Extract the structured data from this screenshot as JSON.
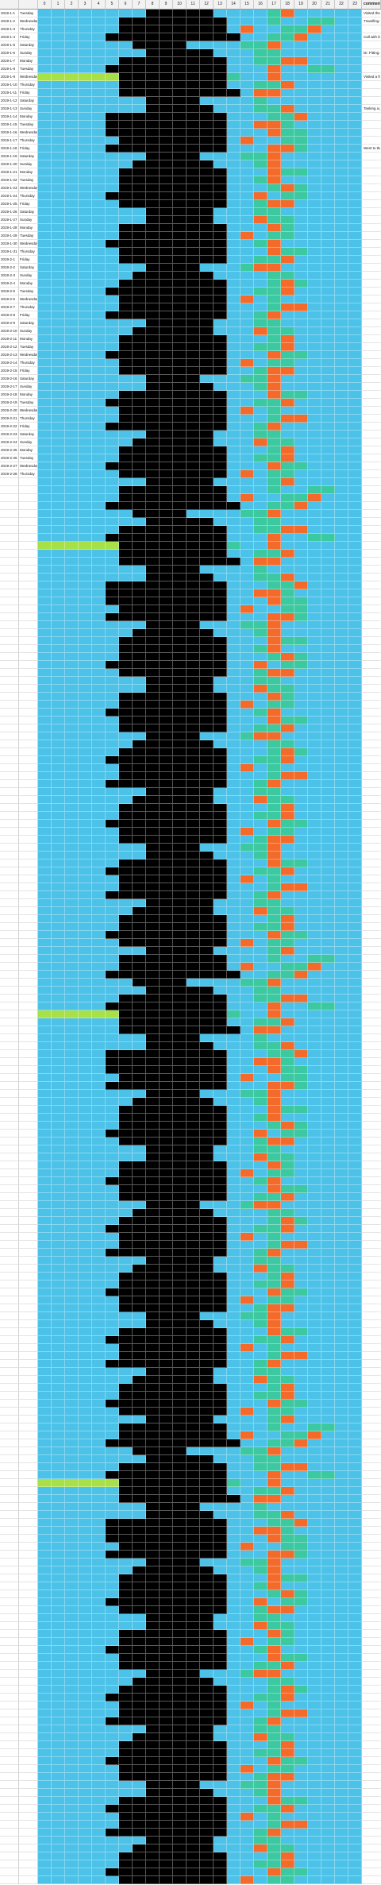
{
  "sheet": {
    "header": {
      "date_label": "",
      "day_label": "",
      "hours": [
        "0",
        "1",
        "2",
        "3",
        "4",
        "5",
        "6",
        "7",
        "8",
        "9",
        "10",
        "11",
        "12",
        "13",
        "14",
        "15",
        "16",
        "17",
        "18",
        "19",
        "20",
        "21",
        "22",
        "23"
      ],
      "comment_label": "comment"
    },
    "palette": {
      "black": "#000000",
      "cyan": "#4cc2e8",
      "lime": "#a8e048",
      "green": "#3cc8a0",
      "orange": "#f46a2a",
      "yellow": "#f0e050",
      "blue": "#5070d8",
      "gray": "#b0b0b8",
      "red": "#d83020"
    },
    "rows": [
      {
        "date": "2019-1-1",
        "day": "Tuesday",
        "cells": "CCCCCCCCBBBBBCCCCGOCCCCC",
        "comment": "Visited the parents"
      },
      {
        "date": "2019-1-2",
        "day": "Wednesday",
        "cells": "CCCCCCBBBBBBBBCCCGCCGGCC",
        "comment": "Travelling back after holidays"
      },
      {
        "date": "2019-1-3",
        "day": "Thursday",
        "cells": "CCCCCCBBBBBBBBCOCCGGOCCC",
        "comment": ""
      },
      {
        "date": "2019-1-4",
        "day": "Friday",
        "cells": "CCCCCBBBBBBBBBBCCGGOCCCC",
        "comment": "Call with family at home"
      },
      {
        "date": "2019-1-5",
        "day": "Saturday",
        "cells": "CCCCCCCBBBBCCCCGGOCCCCCC",
        "comment": ""
      },
      {
        "date": "2019-1-6",
        "day": "Sunday",
        "cells": "CCCCCCCCBBBBBCCCGGCCCCCC",
        "comment": "Dr. Fitting my composite review"
      },
      {
        "date": "2019-1-7",
        "day": "Monday",
        "cells": "CCCCCCBBBBBBBBCCGGOOCCCC",
        "comment": ""
      },
      {
        "date": "2019-1-8",
        "day": "Tuesday",
        "cells": "CCCCCBBBBBBBBBCCCOCCGGCC",
        "comment": ""
      },
      {
        "date": "2019-1-9",
        "day": "Wednesday",
        "cells": "LLLLLLBBBBBBBBGCCOCCCCCC",
        "comment": "Visited a friend"
      },
      {
        "date": "2019-1-10",
        "day": "Thursday",
        "cells": "CCCCCCBBBBBBBBCCGGOCCCCC",
        "comment": ""
      },
      {
        "date": "2019-1-11",
        "day": "Friday",
        "cells": "CCCCCCBBBBBBBBBCOOCCCCCC",
        "comment": ""
      },
      {
        "date": "2019-1-12",
        "day": "Saturday",
        "cells": "CCCCCCCCBBBBCCCCGCCCCCCC",
        "comment": ""
      },
      {
        "date": "2019-1-13",
        "day": "Sunday",
        "cells": "CCCCCCCCBBBBBCCCGGOCCCCC",
        "comment": "Tanking a job interview"
      },
      {
        "date": "2019-1-14",
        "day": "Monday",
        "cells": "CCCCCBBBBBBBBBCCCGGOCCCC",
        "comment": ""
      },
      {
        "date": "2019-1-15",
        "day": "Tuesday",
        "cells": "CCCCCBBBBBBBBBCCOOGCCCCC",
        "comment": ""
      },
      {
        "date": "2019-1-16",
        "day": "Wednesday",
        "cells": "CCCCCBBBBBBBBBCCCOGGCCCC",
        "comment": ""
      },
      {
        "date": "2019-1-17",
        "day": "Thursday",
        "cells": "CCCCCCBBBBBBBBCOCCGGCCCC",
        "comment": ""
      },
      {
        "date": "2019-1-18",
        "day": "Friday",
        "cells": "CCCCCBBBBBBBBBCCCOOGCCCC",
        "comment": "Went to the cinema"
      },
      {
        "date": "2019-1-19",
        "day": "Saturday",
        "cells": "CCCCCCCCBBBBCCCGGOCCCCCC",
        "comment": ""
      },
      {
        "date": "2019-1-20",
        "day": "Sunday",
        "cells": "CCCCCCCBBBBBBCCCGOCCCCCC",
        "comment": ""
      },
      {
        "date": "2019-1-21",
        "day": "Monday",
        "cells": "CCCCCCBBBBBBBBCCCOGGCCCC",
        "comment": ""
      },
      {
        "date": "2019-1-22",
        "day": "Tuesday",
        "cells": "CCCCCCBBBBBBBBCCGOCCCCCC",
        "comment": ""
      },
      {
        "date": "2019-1-23",
        "day": "Wednesday",
        "cells": "CCCCCCBBBBBBBBCCCGOGCCCC",
        "comment": ""
      },
      {
        "date": "2019-1-24",
        "day": "Thursday",
        "cells": "CCCCCBBBBBBBBBCCOCGGCCCC",
        "comment": ""
      },
      {
        "date": "2019-1-25",
        "day": "Friday",
        "cells": "CCCCCCBBBBBBBBCCGOOCCCCC",
        "comment": ""
      },
      {
        "date": "2019-1-26",
        "day": "Saturday",
        "cells": "CCCCCCCCBBBBBCCCGGCCCCCC",
        "comment": ""
      },
      {
        "date": "2019-1-27",
        "day": "Sunday",
        "cells": "CCCCCCCCBBBBBCCCOGGCCCCC",
        "comment": ""
      },
      {
        "date": "2019-1-28",
        "day": "Monday",
        "cells": "CCCCCCBBBBBBBBCCCOGCCCCC",
        "comment": ""
      },
      {
        "date": "2019-1-29",
        "day": "Tuesday",
        "cells": "CCCCCCBBBBBBBBCOCGGCCCCC",
        "comment": ""
      },
      {
        "date": "2019-1-30",
        "day": "Wednesday",
        "cells": "CCCCCBBBBBBBBBCCGOCCCCCC",
        "comment": ""
      },
      {
        "date": "2019-1-31",
        "day": "Thursday",
        "cells": "CCCCCCBBBBBBBBCCCOGGCCCC",
        "comment": ""
      },
      {
        "date": "2019-2-1",
        "day": "Friday",
        "cells": "CCCCCCBBBBBBBBCCGGOCCCCC",
        "comment": ""
      },
      {
        "date": "2019-2-2",
        "day": "Saturday",
        "cells": "CCCCCCCCBBBBCCCGOOCCCCCC",
        "comment": ""
      },
      {
        "date": "2019-2-3",
        "day": "Sunday",
        "cells": "CCCCCCCBBBBBBCCCCGGCCCCC",
        "comment": ""
      },
      {
        "date": "2019-2-4",
        "day": "Monday",
        "cells": "CCCCCCBBBBBBBBCCCGOGCCCC",
        "comment": ""
      },
      {
        "date": "2019-2-5",
        "day": "Tuesday",
        "cells": "CCCCCBBBBBBBBBCCGGOCCCCC",
        "comment": ""
      },
      {
        "date": "2019-2-6",
        "day": "Wednesday",
        "cells": "CCCCCCBBBBBBBBCOCGCCCCCC",
        "comment": ""
      },
      {
        "date": "2019-2-7",
        "day": "Thursday",
        "cells": "CCCCCCBBBBBBBBCCCGOOCCCC",
        "comment": ""
      },
      {
        "date": "2019-2-8",
        "day": "Friday",
        "cells": "CCCCCBBBBBBBBBCCGOCCCCCC",
        "comment": ""
      },
      {
        "date": "2019-2-9",
        "day": "Saturday",
        "cells": "CCCCCCCCBBBBBCCCGGCCCCCC",
        "comment": ""
      },
      {
        "date": "2019-2-10",
        "day": "Sunday",
        "cells": "CCCCCCCBBBBBBCCCOGGCCCCC",
        "comment": ""
      },
      {
        "date": "2019-2-11",
        "day": "Monday",
        "cells": "CCCCCCBBBBBBBBCCCGOCCCCC",
        "comment": ""
      },
      {
        "date": "2019-2-12",
        "day": "Tuesday",
        "cells": "CCCCCCBBBBBBBBCCGGOCCCCC",
        "comment": ""
      },
      {
        "date": "2019-2-13",
        "day": "Wednesday",
        "cells": "CCCCCBBBBBBBBBCCCOGGCCCC",
        "comment": ""
      },
      {
        "date": "2019-2-14",
        "day": "Thursday",
        "cells": "CCCCCCBBBBBBBBCOCGGCCCCC",
        "comment": ""
      },
      {
        "date": "2019-2-15",
        "day": "Friday",
        "cells": "CCCCCCBBBBBBBBCCGOOCCCCC",
        "comment": ""
      },
      {
        "date": "2019-2-16",
        "day": "Saturday",
        "cells": "CCCCCCCCBBBBCCCGGOCCCCCC",
        "comment": ""
      },
      {
        "date": "2019-2-17",
        "day": "Sunday",
        "cells": "CCCCCCCCBBBBBCCCGOCCCCCC",
        "comment": ""
      },
      {
        "date": "2019-2-18",
        "day": "Monday",
        "cells": "CCCCCCBBBBBBBBCCCOGGCCCC",
        "comment": ""
      },
      {
        "date": "2019-2-19",
        "day": "Tuesday",
        "cells": "CCCCCBBBBBBBBBCCGGOCCCCC",
        "comment": ""
      },
      {
        "date": "2019-2-20",
        "day": "Wednesday",
        "cells": "CCCCCCBBBBBBBBCOCGCCCCCC",
        "comment": ""
      },
      {
        "date": "2019-2-21",
        "day": "Thursday",
        "cells": "CCCCCCBBBBBBBBCCCGOOCCCC",
        "comment": ""
      },
      {
        "date": "2019-2-22",
        "day": "Friday",
        "cells": "CCCCCBBBBBBBBBCCGOCCCCCC",
        "comment": ""
      },
      {
        "date": "2019-2-23",
        "day": "Saturday",
        "cells": "CCCCCCCCBBBBBCCCGGCCCCCC",
        "comment": ""
      },
      {
        "date": "2019-2-24",
        "day": "Sunday",
        "cells": "CCCCCCCBBBBBBCCCOGGCCCCC",
        "comment": ""
      },
      {
        "date": "2019-2-25",
        "day": "Monday",
        "cells": "CCCCCCBBBBBBBBCCCGOCCCCC",
        "comment": ""
      },
      {
        "date": "2019-2-26",
        "day": "Tuesday",
        "cells": "CCCCCCBBBBBBBBCCGGOCCCCC",
        "comment": ""
      },
      {
        "date": "2019-2-27",
        "day": "Wednesday",
        "cells": "CCCCCBBBBBBBBBCCCOGGCCCC",
        "comment": ""
      },
      {
        "date": "2019-2-28",
        "day": "Thursday",
        "cells": "CCCCCCBBBBBBBBCOCGGCCCCC",
        "comment": ""
      }
    ]
  }
}
